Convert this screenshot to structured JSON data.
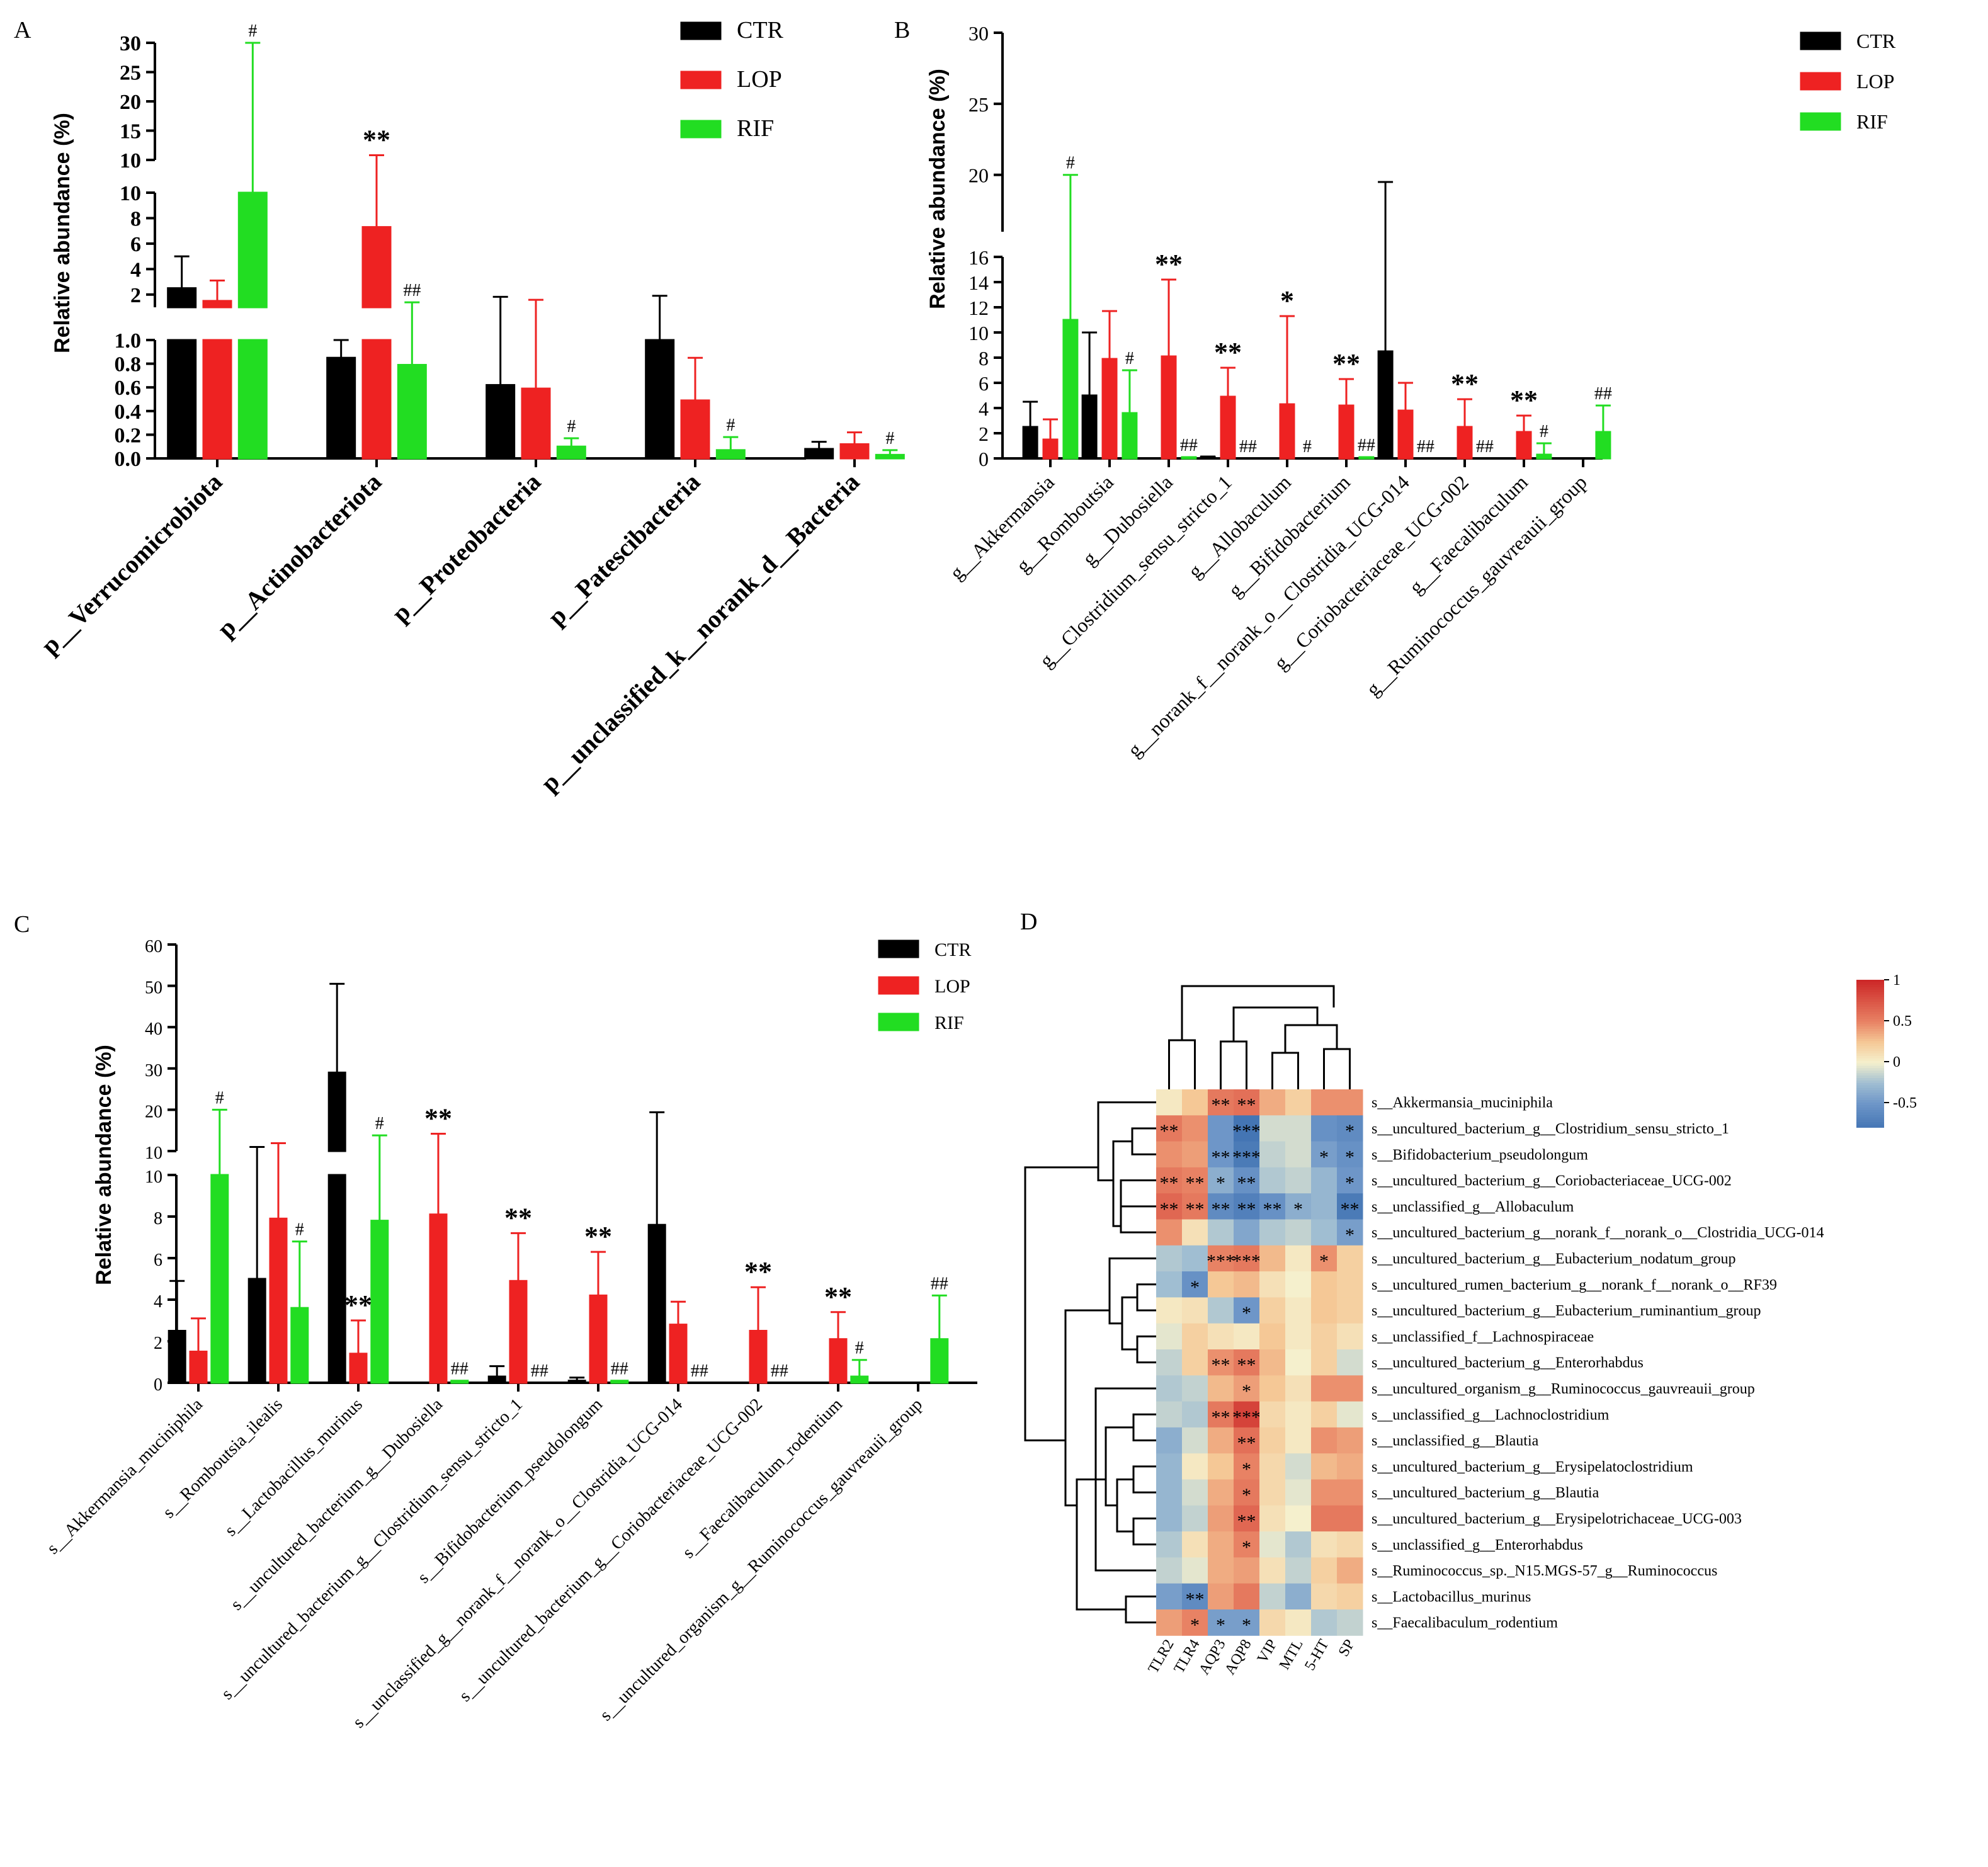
{
  "colors": {
    "CTR": "#000000",
    "LOP": "#ee2222",
    "RIF": "#22dd22",
    "LOP_fill": "#ee2222",
    "RIF_fill": "#22dd22"
  },
  "chart_data": [
    {
      "id": "A",
      "panel_letter": "A",
      "type": "bar",
      "ylabel": "Relative abundance (%)",
      "legend": [
        "CTR",
        "LOP",
        "RIF"
      ],
      "categories": [
        "p__Verrucomicrobiota",
        "p__Actinobacteriota",
        "p__Proteobacteria",
        "p__Patescibacteria",
        "p__unclassified_k__norank_d__Bacteria"
      ],
      "series": [
        {
          "name": "CTR",
          "values": [
            2.5,
            0.85,
            0.62,
            1.0,
            0.08
          ],
          "errors": [
            2.5,
            0.15,
            1.2,
            0.9,
            0.06
          ]
        },
        {
          "name": "LOP",
          "values": [
            1.5,
            7.3,
            0.59,
            0.49,
            0.12
          ],
          "errors": [
            1.6,
            3.5,
            1.0,
            0.36,
            0.1
          ]
        },
        {
          "name": "RIF",
          "values": [
            10.0,
            0.79,
            0.1,
            0.07,
            0.03
          ],
          "errors": [
            20.0,
            0.6,
            0.07,
            0.11,
            0.04
          ]
        }
      ],
      "segments": [
        {
          "range": [
            0,
            1
          ],
          "ticks": [
            0.0,
            0.2,
            0.4,
            0.6,
            0.8,
            1.0
          ]
        },
        {
          "range": [
            1,
            10
          ],
          "ticks": [
            2,
            4,
            6,
            8,
            10
          ]
        },
        {
          "range": [
            10,
            30
          ],
          "ticks": [
            10,
            15,
            20,
            25,
            30
          ]
        }
      ],
      "annotations": [
        {
          "cat": 0,
          "series": 2,
          "text": "#"
        },
        {
          "cat": 1,
          "series": 1,
          "text": "**"
        },
        {
          "cat": 1,
          "series": 2,
          "text": "##"
        },
        {
          "cat": 2,
          "series": 2,
          "text": "#"
        },
        {
          "cat": 3,
          "series": 2,
          "text": "#"
        },
        {
          "cat": 4,
          "series": 2,
          "text": "#"
        }
      ]
    },
    {
      "id": "B",
      "panel_letter": "B",
      "type": "bar",
      "ylabel": "Relative abundance (%)",
      "legend": [
        "CTR",
        "LOP",
        "RIF"
      ],
      "categories": [
        "g__Akkermansia",
        "g__Romboutsia",
        "g__Dubosiella",
        "g__Clostridium_sensu_stricto_1",
        "g__Allobaculum",
        "g__Bifidobacterium",
        "g__norank_f__norank_o__Clostridia_UCG-014",
        "g__Coriobacteriaceae_UCG-002",
        "g__Faecalibaculum",
        "g__Ruminococcus_gauvreauii_group"
      ],
      "series": [
        {
          "name": "CTR",
          "values": [
            2.5,
            5.0,
            0,
            0.1,
            0,
            0,
            8.5,
            0,
            0,
            0
          ],
          "errors": [
            2.0,
            5.0,
            0,
            0.05,
            0,
            0,
            11.0,
            0,
            0,
            0
          ]
        },
        {
          "name": "LOP",
          "values": [
            1.5,
            7.9,
            8.1,
            4.9,
            4.3,
            4.2,
            3.8,
            2.5,
            2.1,
            0
          ],
          "errors": [
            1.6,
            3.8,
            6.1,
            2.3,
            7.0,
            2.1,
            2.2,
            2.2,
            1.3,
            0
          ]
        },
        {
          "name": "RIF",
          "values": [
            11.0,
            3.6,
            0.1,
            0,
            0,
            0.1,
            0,
            0,
            0.3,
            2.1
          ],
          "errors": [
            9.0,
            3.4,
            0,
            0,
            0,
            0,
            0,
            0,
            0.9,
            2.1
          ]
        }
      ],
      "segments": [
        {
          "range": [
            0,
            16
          ],
          "ticks": [
            0,
            2,
            4,
            6,
            8,
            10,
            12,
            14,
            16
          ]
        },
        {
          "range": [
            16,
            30
          ],
          "ticks": [
            20,
            25,
            30
          ]
        }
      ],
      "annotations": [
        {
          "cat": 0,
          "series": 2,
          "text": "#"
        },
        {
          "cat": 1,
          "series": 2,
          "text": "#"
        },
        {
          "cat": 2,
          "series": 1,
          "text": "**"
        },
        {
          "cat": 2,
          "series": 2,
          "text": "##"
        },
        {
          "cat": 3,
          "series": 1,
          "text": "**"
        },
        {
          "cat": 3,
          "series": 2,
          "text": "##"
        },
        {
          "cat": 4,
          "series": 1,
          "text": "*"
        },
        {
          "cat": 4,
          "series": 2,
          "text": "#"
        },
        {
          "cat": 5,
          "series": 1,
          "text": "**"
        },
        {
          "cat": 5,
          "series": 2,
          "text": "##"
        },
        {
          "cat": 6,
          "series": 2,
          "text": "##"
        },
        {
          "cat": 7,
          "series": 1,
          "text": "**"
        },
        {
          "cat": 7,
          "series": 2,
          "text": "##"
        },
        {
          "cat": 8,
          "series": 1,
          "text": "**"
        },
        {
          "cat": 8,
          "series": 2,
          "text": "#"
        },
        {
          "cat": 9,
          "series": 2,
          "text": "##"
        }
      ]
    },
    {
      "id": "C",
      "panel_letter": "C",
      "type": "bar",
      "ylabel": "Relative abundance (%)",
      "legend": [
        "CTR",
        "LOP",
        "RIF"
      ],
      "categories": [
        "s__Akkermansia_muciniphila",
        "s__Romboutsia_ilealis",
        "s__Lactobacillus_murinus",
        "s__uncultured_bacterium_g__Dubosiella",
        "s__uncultured_bacterium_g__Clostridium_sensu_stricto_1",
        "s__Bifidobacterium_pseudolongum",
        "s__unclassified_g__norank_f__norank_o__Clostridia_UCG-014",
        "s__uncultured_bacterium_g__Coriobacteriaceae_UCG-002",
        "s__Faecalibaculum_rodentium",
        "s__uncultured_organism_g__Ruminococcus_gauvreauii_group"
      ],
      "series": [
        {
          "name": "CTR",
          "values": [
            2.5,
            5.0,
            29.0,
            0,
            0.3,
            0.1,
            7.6,
            0,
            0,
            0
          ],
          "errors": [
            2.4,
            6.0,
            21.5,
            0,
            0.5,
            0.15,
            11.8,
            0,
            0,
            0
          ]
        },
        {
          "name": "LOP",
          "values": [
            1.5,
            7.9,
            1.4,
            8.1,
            4.9,
            4.2,
            2.8,
            2.5,
            2.1,
            0
          ],
          "errors": [
            1.6,
            4.0,
            1.6,
            6.1,
            2.3,
            2.1,
            1.1,
            2.1,
            1.3,
            0
          ]
        },
        {
          "name": "RIF",
          "values": [
            10.0,
            3.6,
            7.8,
            0.1,
            0,
            0.1,
            0,
            0,
            0.3,
            2.1
          ],
          "errors": [
            10.0,
            3.2,
            6.0,
            0,
            0,
            0,
            0,
            0,
            0.8,
            2.1
          ]
        }
      ],
      "segments": [
        {
          "range": [
            0,
            10
          ],
          "ticks": [
            0,
            2,
            4,
            6,
            8,
            10
          ]
        },
        {
          "range": [
            10,
            60
          ],
          "ticks": [
            10,
            20,
            30,
            40,
            50,
            60
          ]
        }
      ],
      "annotations": [
        {
          "cat": 0,
          "series": 2,
          "text": "#"
        },
        {
          "cat": 1,
          "series": 2,
          "text": "#"
        },
        {
          "cat": 2,
          "series": 1,
          "text": "**"
        },
        {
          "cat": 2,
          "series": 2,
          "text": "#"
        },
        {
          "cat": 3,
          "series": 1,
          "text": "**"
        },
        {
          "cat": 3,
          "series": 2,
          "text": "##"
        },
        {
          "cat": 4,
          "series": 1,
          "text": "**"
        },
        {
          "cat": 4,
          "series": 2,
          "text": "##"
        },
        {
          "cat": 5,
          "series": 1,
          "text": "**"
        },
        {
          "cat": 5,
          "series": 2,
          "text": "##"
        },
        {
          "cat": 6,
          "series": 2,
          "text": "##"
        },
        {
          "cat": 7,
          "series": 1,
          "text": "**"
        },
        {
          "cat": 7,
          "series": 2,
          "text": "##"
        },
        {
          "cat": 8,
          "series": 1,
          "text": "**"
        },
        {
          "cat": 8,
          "series": 2,
          "text": "#"
        },
        {
          "cat": 9,
          "series": 2,
          "text": "##"
        }
      ]
    },
    {
      "id": "D",
      "panel_letter": "D",
      "type": "heatmap",
      "columns": [
        "TLR2",
        "TLR4",
        "AQP3",
        "AQP8",
        "VIP",
        "MTL",
        "5-HT",
        "SP"
      ],
      "rows": [
        "s__Akkermansia_muciniphila",
        "s__uncultured_bacterium_g__Clostridium_sensu_stricto_1",
        "s__Bifidobacterium_pseudolongum",
        "s__uncultured_bacterium_g__Coriobacteriaceae_UCG-002",
        "s__unclassified_g__Allobaculum",
        "s__uncultured_bacterium_g__norank_f__norank_o__Clostridia_UCG-014",
        "s__uncultured_bacterium_g__Eubacterium_nodatum_group",
        "s__uncultured_rumen_bacterium_g__norank_f__norank_o__RF39",
        "s__uncultured_bacterium_g__Eubacterium_ruminantium_group",
        "s__unclassified_f__Lachnospiraceae",
        "s__uncultured_bacterium_g__Enterorhabdus",
        "s__uncultured_organism_g__Ruminococcus_gauvreauii_group",
        "s__unclassified_g__Lachnoclostridium",
        "s__unclassified_g__Blautia",
        "s__uncultured_bacterium_g__Erysipelatoclostridium",
        "s__uncultured_bacterium_g__Blautia",
        "s__uncultured_bacterium_g__Erysipelotrichaceae_UCG-003",
        "s__unclassified_g__Enterorhabdus",
        "s__Ruminococcus_sp._N15.MGS-57_g__Ruminococcus",
        "s__Lactobacillus_murinus",
        "s__Faecalibaculum_rodentium"
      ],
      "values": [
        [
          0.05,
          0.25,
          0.55,
          0.6,
          0.35,
          0.2,
          0.45,
          0.45
        ],
        [
          0.55,
          0.45,
          -0.5,
          -0.8,
          -0.1,
          -0.1,
          -0.55,
          -0.6
        ],
        [
          0.45,
          0.4,
          -0.5,
          -0.75,
          -0.15,
          -0.1,
          -0.45,
          -0.55
        ],
        [
          0.55,
          0.5,
          -0.35,
          -0.55,
          -0.2,
          -0.15,
          -0.3,
          -0.5
        ],
        [
          0.65,
          0.55,
          -0.6,
          -0.7,
          -0.55,
          -0.35,
          -0.3,
          -0.75
        ],
        [
          0.45,
          0.1,
          -0.2,
          -0.4,
          -0.2,
          -0.15,
          -0.25,
          -0.45
        ],
        [
          -0.2,
          -0.25,
          0.5,
          0.55,
          0.3,
          0.05,
          0.45,
          0.2
        ],
        [
          -0.25,
          -0.55,
          0.25,
          0.3,
          0.1,
          0.0,
          0.25,
          0.2
        ],
        [
          0.05,
          0.1,
          -0.2,
          -0.5,
          0.2,
          0.05,
          0.25,
          0.2
        ],
        [
          -0.05,
          0.2,
          0.1,
          0.05,
          0.25,
          0.05,
          0.2,
          0.1
        ],
        [
          -0.15,
          0.2,
          0.45,
          0.55,
          0.3,
          0.0,
          0.2,
          -0.1
        ],
        [
          -0.2,
          -0.15,
          0.3,
          0.4,
          0.25,
          0.1,
          0.45,
          0.45
        ],
        [
          -0.15,
          -0.2,
          0.55,
          0.85,
          0.15,
          0.05,
          0.2,
          -0.05
        ],
        [
          -0.35,
          -0.1,
          0.35,
          0.6,
          0.2,
          0.05,
          0.45,
          0.4
        ],
        [
          -0.3,
          0.05,
          0.25,
          0.5,
          0.15,
          -0.1,
          0.3,
          0.35
        ],
        [
          -0.3,
          -0.1,
          0.35,
          0.55,
          0.15,
          -0.05,
          0.45,
          0.45
        ],
        [
          -0.3,
          -0.15,
          0.4,
          0.65,
          0.1,
          0.0,
          0.55,
          0.55
        ],
        [
          -0.2,
          0.1,
          0.35,
          0.5,
          -0.05,
          -0.2,
          0.1,
          0.15
        ],
        [
          -0.15,
          -0.05,
          0.35,
          0.4,
          0.1,
          -0.15,
          0.2,
          0.35
        ],
        [
          -0.45,
          -0.6,
          0.4,
          0.55,
          -0.15,
          -0.35,
          0.15,
          0.2
        ],
        [
          0.4,
          0.5,
          -0.45,
          -0.45,
          0.15,
          0.05,
          -0.2,
          -0.15
        ]
      ],
      "stars": [
        [
          "",
          "",
          "**",
          "**",
          "",
          "",
          "",
          ""
        ],
        [
          "**",
          "",
          "",
          "***",
          "",
          "",
          "",
          "*"
        ],
        [
          "",
          "",
          "**",
          "***",
          "",
          "",
          "*",
          "*"
        ],
        [
          "**",
          "**",
          "*",
          "**",
          "",
          "",
          "",
          "*"
        ],
        [
          "**",
          "**",
          "**",
          "**",
          "**",
          "*",
          "",
          "**"
        ],
        [
          "",
          "",
          "",
          "",
          "",
          "",
          "",
          "*"
        ],
        [
          "",
          "",
          "***",
          "***",
          "",
          "",
          "*",
          ""
        ],
        [
          "",
          "*",
          "",
          "",
          "",
          "",
          "",
          ""
        ],
        [
          "",
          "",
          "",
          "*",
          "",
          "",
          "",
          ""
        ],
        [
          "",
          "",
          "",
          "",
          "",
          "",
          "",
          ""
        ],
        [
          "",
          "",
          "**",
          "**",
          "",
          "",
          "",
          ""
        ],
        [
          "",
          "",
          "",
          "*",
          "",
          "",
          "",
          ""
        ],
        [
          "",
          "",
          "**",
          "***",
          "",
          "",
          "",
          ""
        ],
        [
          "",
          "",
          "",
          "**",
          "",
          "",
          "",
          ""
        ],
        [
          "",
          "",
          "",
          "*",
          "",
          "",
          "",
          ""
        ],
        [
          "",
          "",
          "",
          "*",
          "",
          "",
          "",
          ""
        ],
        [
          "",
          "",
          "",
          "**",
          "",
          "",
          "",
          ""
        ],
        [
          "",
          "",
          "",
          "*",
          "",
          "",
          "",
          ""
        ],
        [
          "",
          "",
          "",
          "",
          "",
          "",
          "",
          ""
        ],
        [
          "",
          "**",
          "",
          "",
          "",
          "",
          "",
          ""
        ],
        [
          "",
          "*",
          "*",
          "*",
          "",
          "",
          "",
          ""
        ]
      ],
      "colorbar": {
        "ticks": [
          "1",
          "0.5",
          "0",
          "-0.5"
        ],
        "values": [
          1,
          0.5,
          0,
          -0.5
        ],
        "range": [
          -0.8,
          1
        ]
      }
    }
  ]
}
